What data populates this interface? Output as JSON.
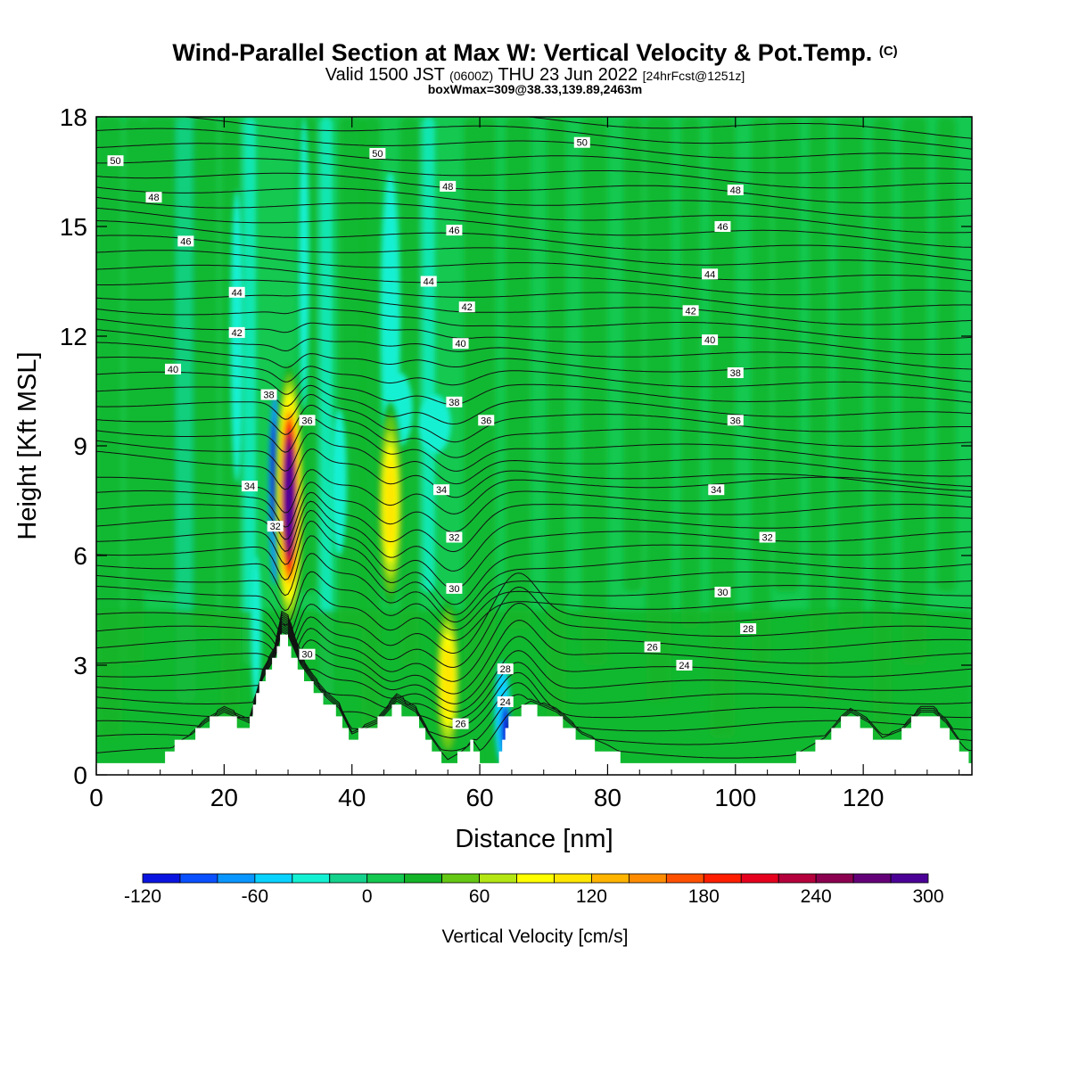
{
  "header": {
    "title": "Wind-Parallel Section at Max W: Vertical Velocity & Pot.Temp.",
    "copyright": "(C)",
    "valid_prefix": "Valid 1500 JST",
    "valid_utc": "(0600Z)",
    "valid_date": "THU 23 Jun 2022",
    "forecast": "[24hrFcst@1251z]",
    "boxmax": "boxWmax=309@38.33,139.89,2463m"
  },
  "chart_data": {
    "type": "contour",
    "xlabel": "Distance [nm]",
    "ylabel": "Height [Kft MSL]",
    "xlim": [
      0,
      137
    ],
    "ylim": [
      0,
      18
    ],
    "x_ticks": [
      0,
      20,
      40,
      60,
      80,
      100,
      120
    ],
    "y_ticks": [
      0,
      3,
      6,
      9,
      12,
      15,
      18
    ],
    "colorbar": {
      "title": "Vertical Velocity [cm/s]",
      "tick_labels": [
        "-120",
        "-60",
        "0",
        "60",
        "120",
        "180",
        "240",
        "300"
      ],
      "tick_values": [
        -120,
        -60,
        0,
        60,
        120,
        180,
        240,
        300
      ],
      "levels": [
        -120,
        -100,
        -80,
        -60,
        -40,
        -20,
        0,
        20,
        40,
        60,
        80,
        100,
        120,
        140,
        160,
        180,
        200,
        220,
        240,
        260,
        280,
        300
      ],
      "colors": [
        "#0a14e0",
        "#0a50ff",
        "#0a96ff",
        "#0ad2ff",
        "#14f0d2",
        "#14d28c",
        "#14c850",
        "#14b428",
        "#64c814",
        "#b4e614",
        "#ffff00",
        "#ffe600",
        "#ffb400",
        "#ff8c00",
        "#ff5000",
        "#ff1e00",
        "#e6001e",
        "#b4003c",
        "#8c0050",
        "#640078",
        "#4b0096"
      ]
    },
    "terrain_profile": {
      "x": [
        0,
        10,
        13,
        15,
        17,
        20,
        24,
        26,
        28,
        29,
        30,
        32,
        34,
        36,
        38,
        40,
        44,
        47,
        50,
        52,
        54,
        55,
        57,
        59,
        61,
        63,
        65,
        68,
        72,
        76,
        80,
        84,
        88,
        92,
        96,
        100,
        104,
        108,
        111,
        114,
        116,
        118,
        121,
        123,
        126,
        129,
        131,
        133,
        135,
        137
      ],
      "y": [
        0.3,
        0.3,
        0.8,
        1.0,
        1.3,
        1.6,
        1.3,
        2.5,
        3.1,
        3.8,
        3.7,
        2.9,
        2.4,
        2.0,
        1.7,
        1.0,
        1.3,
        1.9,
        1.6,
        1.0,
        0.5,
        0.3,
        0.5,
        0.8,
        0.3,
        0.3,
        1.6,
        1.9,
        1.6,
        1.0,
        0.7,
        0.3,
        0.3,
        0.3,
        0.3,
        0.3,
        0.3,
        0.3,
        0.6,
        0.9,
        1.3,
        1.6,
        1.3,
        0.9,
        1.1,
        1.6,
        1.6,
        1.3,
        0.8,
        0.4
      ]
    },
    "updrafts": [
      {
        "x": 30.2,
        "y": 7.9,
        "peak": 309
      },
      {
        "x": 46.0,
        "y": 7.5,
        "peak": 110
      },
      {
        "x": 55.0,
        "y": 2.6,
        "peak": 100
      }
    ],
    "downdrafts": [
      {
        "x": 28.0,
        "y": 7.5,
        "min": -70
      },
      {
        "x": 64.0,
        "y": 1.3,
        "min": -110
      },
      {
        "x": 46.0,
        "y": 12.5,
        "min": -40
      }
    ],
    "theta_contour_labels": [
      {
        "text": "50",
        "x": 3,
        "y": 16.8
      },
      {
        "text": "50",
        "x": 44,
        "y": 17.0
      },
      {
        "text": "50",
        "x": 76,
        "y": 17.3
      },
      {
        "text": "48",
        "x": 9,
        "y": 15.8
      },
      {
        "text": "48",
        "x": 55,
        "y": 16.1
      },
      {
        "text": "48",
        "x": 100,
        "y": 16.0
      },
      {
        "text": "46",
        "x": 14,
        "y": 14.6
      },
      {
        "text": "46",
        "x": 56,
        "y": 14.9
      },
      {
        "text": "46",
        "x": 98,
        "y": 15.0
      },
      {
        "text": "44",
        "x": 22,
        "y": 13.2
      },
      {
        "text": "44",
        "x": 52,
        "y": 13.5
      },
      {
        "text": "44",
        "x": 96,
        "y": 13.7
      },
      {
        "text": "42",
        "x": 22,
        "y": 12.1
      },
      {
        "text": "42",
        "x": 58,
        "y": 12.8
      },
      {
        "text": "42",
        "x": 93,
        "y": 12.7
      },
      {
        "text": "40",
        "x": 12,
        "y": 11.1
      },
      {
        "text": "40",
        "x": 57,
        "y": 11.8
      },
      {
        "text": "40",
        "x": 96,
        "y": 11.9
      },
      {
        "text": "38",
        "x": 27,
        "y": 10.4
      },
      {
        "text": "38",
        "x": 56,
        "y": 10.2
      },
      {
        "text": "38",
        "x": 100,
        "y": 11.0
      },
      {
        "text": "36",
        "x": 33,
        "y": 9.7
      },
      {
        "text": "36",
        "x": 61,
        "y": 9.7
      },
      {
        "text": "36",
        "x": 100,
        "y": 9.7
      },
      {
        "text": "34",
        "x": 24,
        "y": 7.9
      },
      {
        "text": "34",
        "x": 54,
        "y": 7.8
      },
      {
        "text": "34",
        "x": 97,
        "y": 7.8
      },
      {
        "text": "32",
        "x": 28,
        "y": 6.8
      },
      {
        "text": "32",
        "x": 56,
        "y": 6.5
      },
      {
        "text": "32",
        "x": 105,
        "y": 6.5
      },
      {
        "text": "30",
        "x": 56,
        "y": 5.1
      },
      {
        "text": "30",
        "x": 98,
        "y": 5.0
      },
      {
        "text": "30",
        "x": 33,
        "y": 3.3
      },
      {
        "text": "28",
        "x": 102,
        "y": 4.0
      },
      {
        "text": "28",
        "x": 64,
        "y": 2.9
      },
      {
        "text": "26",
        "x": 87,
        "y": 3.5
      },
      {
        "text": "26",
        "x": 57,
        "y": 1.4
      },
      {
        "text": "24",
        "x": 92,
        "y": 3.0
      },
      {
        "text": "24",
        "x": 64,
        "y": 2.0
      }
    ]
  }
}
